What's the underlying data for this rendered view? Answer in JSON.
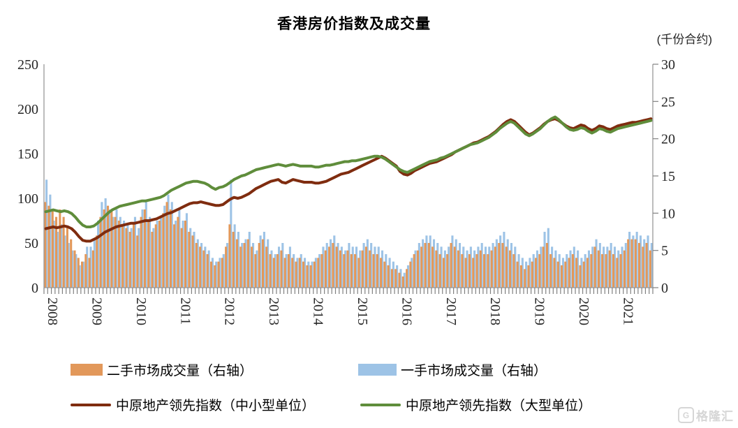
{
  "title": "香港房价指数及成交量",
  "right_axis_unit": "(千份合约)",
  "watermark": {
    "logo_letter": "G",
    "text": "格隆汇"
  },
  "legend": {
    "items": [
      {
        "label": "二手市场成交量（右轴）",
        "type": "bar"
      },
      {
        "label": "一手市场成交量（右轴）",
        "type": "bar"
      },
      {
        "label": "中原地产领先指数（中小型单位）",
        "type": "line"
      },
      {
        "label": "中原地产领先指数（大型单位）",
        "type": "line"
      }
    ]
  },
  "colors": {
    "secondary_bar": "#E2985A",
    "primary_bar": "#9DC3E6",
    "index_small_medium": "#7F2C0F",
    "index_large": "#5F8D3B",
    "axis_line": "#999999",
    "tick_mark": "#808080",
    "tick_label": "#262626"
  },
  "chart_data": {
    "type": "combo-bar-line",
    "x_unit": "month",
    "x_range": "2008-01 to 2021-09",
    "year_labels": [
      2008,
      2009,
      2010,
      2011,
      2012,
      2013,
      2014,
      2015,
      2016,
      2017,
      2018,
      2019,
      2020,
      2021
    ],
    "left_axis": {
      "min": 0,
      "max": 250,
      "step": 50,
      "ticks": [
        0,
        50,
        100,
        150,
        200,
        250
      ]
    },
    "right_axis": {
      "min": 0,
      "max": 30,
      "step": 5,
      "ticks": [
        0,
        5,
        10,
        15,
        20,
        25,
        30
      ],
      "title": "(千份合约)"
    },
    "grid": false,
    "legend_position": "bottom",
    "series": [
      {
        "name": "一手市场成交量（右轴）",
        "type": "bar",
        "axis": "right",
        "color": "#9DC3E6",
        "values": [
          14.5,
          12.5,
          9,
          7.5,
          8.5,
          7,
          6,
          5,
          4.5,
          3,
          3.5,
          5.5,
          5.5,
          6.5,
          9,
          11.5,
          12,
          10.5,
          9.5,
          10.5,
          9.5,
          9,
          8.5,
          8,
          9.5,
          8,
          10.5,
          11.5,
          9.5,
          8,
          9,
          9.5,
          11,
          12.5,
          11.5,
          9,
          10.5,
          9,
          10,
          8,
          7.5,
          6.5,
          6,
          5.5,
          5,
          4,
          3.5,
          4,
          4.5,
          6,
          14.5,
          8.5,
          7.5,
          6,
          6.5,
          7.5,
          6,
          5,
          7,
          7.5,
          6.5,
          5,
          4.5,
          5.5,
          6,
          4.5,
          5.5,
          4.5,
          4,
          4.5,
          4,
          3.5,
          3.5,
          4,
          4.5,
          5.5,
          6,
          6.5,
          7,
          6,
          5.5,
          5,
          6,
          5.5,
          5.5,
          5,
          6,
          6.5,
          6,
          5.5,
          5.5,
          5,
          4.5,
          4,
          3.5,
          3,
          2.5,
          2,
          3,
          4,
          5,
          6,
          6.5,
          7,
          7,
          6.5,
          6,
          5.5,
          5,
          5.5,
          7,
          6.5,
          6,
          5.5,
          5,
          5.5,
          5,
          5.5,
          6,
          5.5,
          5.5,
          6,
          6.5,
          7,
          7.5,
          6.5,
          6,
          5.5,
          4.5,
          4,
          3.5,
          4,
          4.5,
          5,
          5.5,
          7.5,
          8,
          5.5,
          5,
          4.5,
          4,
          4.5,
          5,
          5.5,
          5,
          4,
          4.5,
          5,
          5.5,
          6.5,
          6,
          5.5,
          5.5,
          6,
          5.5,
          5,
          5.5,
          6,
          7.5,
          7,
          7.5,
          7,
          6.5,
          7,
          6
        ]
      },
      {
        "name": "二手市场成交量（右轴）",
        "type": "bar",
        "axis": "right",
        "color": "#E2985A",
        "values": [
          11.5,
          11,
          10.5,
          9.5,
          10.5,
          9.5,
          8,
          6.5,
          5,
          4,
          3.5,
          4.5,
          4,
          5,
          7,
          9.5,
          10.5,
          11,
          10.5,
          9.5,
          9,
          8.5,
          8,
          7.5,
          8.5,
          7,
          9.5,
          10.5,
          9,
          7.5,
          8.5,
          9,
          10,
          11.5,
          10.5,
          8.5,
          9.5,
          8,
          9,
          7.5,
          7,
          6,
          5.5,
          5,
          4.5,
          3.5,
          3,
          3.5,
          4,
          5.5,
          8.5,
          7.5,
          6.5,
          5.5,
          6,
          6.5,
          5.5,
          4.5,
          6,
          6.5,
          5.5,
          4.5,
          4,
          4.5,
          5,
          4,
          4.5,
          4,
          3.5,
          4,
          3.5,
          3,
          3,
          3.5,
          4,
          4.5,
          5,
          5.5,
          6,
          5.5,
          5,
          4.5,
          5,
          4.5,
          4.5,
          4,
          5,
          5.5,
          5,
          4.5,
          4.5,
          4,
          3.5,
          3,
          2.5,
          2.5,
          2,
          1.5,
          2.5,
          3.5,
          4.5,
          5,
          5.5,
          6,
          6,
          5.5,
          5,
          4.5,
          4,
          4.5,
          6,
          5.5,
          5,
          4.5,
          4,
          4.5,
          4,
          4.5,
          5,
          4.5,
          4.5,
          5,
          5.5,
          6,
          6,
          5.5,
          5,
          4.5,
          3.5,
          3,
          2.5,
          3,
          3.5,
          4,
          4.5,
          5.5,
          6,
          4.5,
          4,
          3.5,
          3,
          3.5,
          4,
          4.5,
          4,
          3,
          3.5,
          4,
          4.5,
          5.5,
          5,
          4.5,
          4.5,
          5,
          4.5,
          4,
          4.5,
          5,
          6.5,
          6.5,
          6.5,
          6,
          5.5,
          6,
          5
        ]
      },
      {
        "name": "中原地产领先指数（中小型单位）",
        "type": "line",
        "axis": "left",
        "color": "#7F2C0F",
        "values": [
          66,
          67,
          68,
          67,
          68,
          69,
          68,
          66,
          62,
          57,
          53,
          52,
          52,
          54,
          56,
          59,
          62,
          64,
          66,
          68,
          69,
          70,
          71,
          72,
          72,
          73,
          74,
          75,
          75,
          76,
          77,
          79,
          81,
          83,
          84,
          86,
          88,
          90,
          92,
          94,
          95,
          95,
          96,
          95,
          94,
          93,
          92,
          92,
          93,
          96,
          99,
          101,
          100,
          101,
          103,
          105,
          108,
          111,
          113,
          115,
          117,
          119,
          120,
          121,
          118,
          117,
          119,
          121,
          120,
          119,
          118,
          118,
          118,
          117,
          117,
          118,
          119,
          121,
          123,
          125,
          127,
          128,
          129,
          131,
          133,
          135,
          137,
          139,
          141,
          143,
          145,
          147,
          145,
          142,
          139,
          136,
          130,
          127,
          126,
          128,
          131,
          133,
          135,
          137,
          139,
          140,
          141,
          143,
          145,
          147,
          149,
          152,
          154,
          156,
          158,
          160,
          162,
          163,
          165,
          167,
          169,
          172,
          175,
          179,
          183,
          186,
          188,
          186,
          182,
          178,
          174,
          171,
          173,
          176,
          179,
          183,
          186,
          188,
          189,
          187,
          184,
          181,
          179,
          178,
          180,
          182,
          181,
          178,
          176,
          178,
          181,
          180,
          178,
          177,
          179,
          181,
          182,
          183,
          184,
          185,
          185,
          186,
          187,
          188,
          189
        ]
      },
      {
        "name": "中原地产领先指数（大型单位）",
        "type": "line",
        "axis": "left",
        "color": "#5F8D3B",
        "values": [
          85,
          86,
          87,
          86,
          85,
          86,
          85,
          83,
          79,
          74,
          70,
          68,
          68,
          69,
          72,
          76,
          80,
          84,
          87,
          89,
          91,
          92,
          93,
          94,
          95,
          96,
          97,
          97,
          98,
          99,
          100,
          101,
          103,
          106,
          109,
          111,
          113,
          115,
          117,
          118,
          119,
          119,
          118,
          117,
          115,
          112,
          110,
          112,
          113,
          115,
          118,
          121,
          123,
          125,
          126,
          128,
          130,
          132,
          133,
          134,
          135,
          136,
          137,
          138,
          137,
          136,
          137,
          138,
          137,
          136,
          136,
          136,
          136,
          135,
          135,
          136,
          137,
          137,
          138,
          139,
          140,
          141,
          141,
          142,
          142,
          143,
          144,
          145,
          146,
          147,
          147,
          146,
          144,
          141,
          138,
          135,
          132,
          130,
          129,
          131,
          133,
          135,
          137,
          139,
          141,
          142,
          143,
          145,
          146,
          148,
          150,
          152,
          154,
          156,
          158,
          160,
          161,
          162,
          164,
          166,
          168,
          171,
          174,
          178,
          181,
          184,
          186,
          184,
          180,
          176,
          172,
          170,
          172,
          175,
          178,
          182,
          186,
          189,
          191,
          188,
          184,
          180,
          177,
          176,
          177,
          179,
          178,
          175,
          173,
          175,
          178,
          177,
          175,
          174,
          176,
          178,
          179,
          180,
          181,
          182,
          183,
          184,
          185,
          186,
          187
        ]
      }
    ]
  }
}
